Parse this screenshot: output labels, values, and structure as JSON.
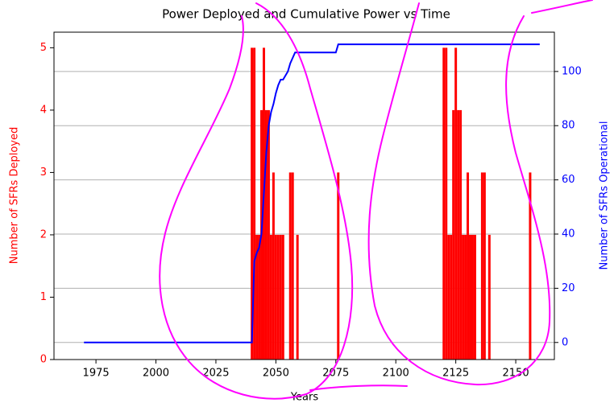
{
  "chart_data": {
    "type": "combo",
    "title": "Power Deployed and Cumulative Power vs Time",
    "xlabel": "Years",
    "ylabel": "Number of SFRs Deployed",
    "y2label": "Number of SFRs Operational",
    "ylabel_color": "#ff0000",
    "y2label_color": "#0000ff",
    "xlim": [
      1957.5,
      2166.1
    ],
    "xticks": [
      1975,
      2000,
      2025,
      2050,
      2075,
      2100,
      2125,
      2150
    ],
    "ylim": [
      0,
      5.25
    ],
    "yticks": [
      0,
      1,
      2,
      3,
      4,
      5
    ],
    "y2lim": [
      -6.3,
      114.5
    ],
    "y2ticks": [
      0,
      20,
      40,
      60,
      80,
      100
    ],
    "grid": "y2",
    "series": [
      {
        "type": "bar",
        "color": "#ff0000",
        "x": [
          2040,
          2041,
          2042,
          2043,
          2044,
          2045,
          2046,
          2047,
          2048,
          2049,
          2050,
          2051,
          2052,
          2053,
          2056,
          2057,
          2059,
          2076,
          2120,
          2121,
          2122,
          2123,
          2124,
          2125,
          2126,
          2127,
          2128,
          2129,
          2130,
          2131,
          2132,
          2133,
          2136,
          2137,
          2139,
          2156
        ],
        "values": [
          5,
          5,
          2,
          2,
          4,
          5,
          4,
          4,
          2,
          3,
          2,
          2,
          2,
          2,
          3,
          3,
          2,
          3,
          5,
          5,
          2,
          2,
          4,
          5,
          4,
          4,
          2,
          2,
          3,
          2,
          2,
          2,
          3,
          3,
          2,
          3
        ]
      },
      {
        "type": "line",
        "color": "#0000ff",
        "axis": "y2",
        "x": [
          1970,
          2040,
          2041,
          2042,
          2043,
          2044,
          2045,
          2046,
          2047,
          2048,
          2049,
          2050,
          2051,
          2052,
          2053,
          2055,
          2056,
          2057,
          2058,
          2059,
          2075,
          2076,
          2160
        ],
        "values": [
          0,
          0,
          30,
          33,
          35,
          40,
          55,
          70,
          80,
          85,
          88,
          92,
          95,
          97,
          97,
          100,
          103,
          105,
          107,
          107,
          107,
          110,
          110
        ]
      }
    ]
  }
}
